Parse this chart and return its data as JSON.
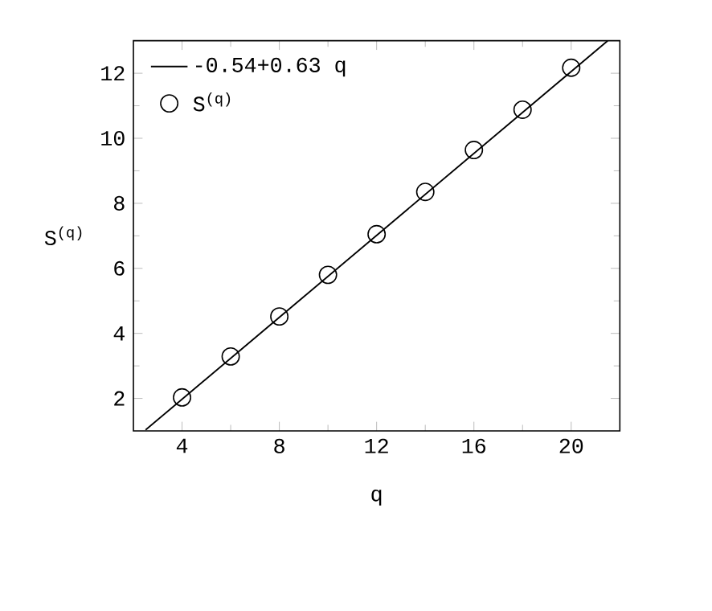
{
  "chart_data": {
    "type": "scatter",
    "xlabel": "q",
    "ylabel": "S$^{(q)}$",
    "xlim": [
      2,
      22
    ],
    "ylim": [
      1,
      13
    ],
    "xticks": [
      4,
      8,
      12,
      16,
      20
    ],
    "yticks": [
      2,
      4,
      6,
      8,
      10,
      12
    ],
    "legend": "top left",
    "grid": false,
    "series": [
      {
        "name": "-0.54+0.63 q",
        "type": "line",
        "color": "#000000",
        "x": [
          2.5,
          21.5
        ],
        "values": [
          1.03,
          13.0
        ],
        "marker": "none",
        "line_style": "solid"
      },
      {
        "name": "S$^{(q)}$",
        "color": "#000000",
        "x": [
          4,
          6,
          8,
          10,
          12,
          14,
          16,
          18,
          20
        ],
        "values": [
          2.03,
          3.29,
          4.52,
          5.8,
          7.05,
          8.35,
          9.64,
          10.88,
          12.17
        ],
        "marker": "circle"
      }
    ]
  }
}
